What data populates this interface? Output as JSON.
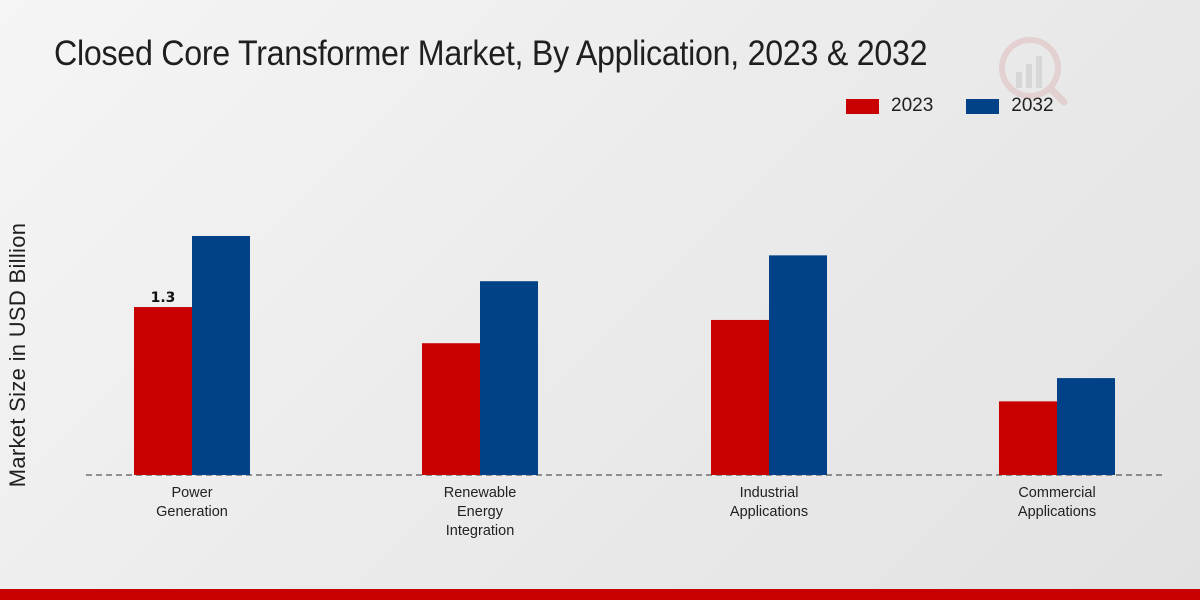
{
  "chart_data": {
    "type": "bar",
    "title": "Closed Core Transformer Market, By Application, 2023 & 2032",
    "xlabel": "",
    "ylabel": "Market Size in USD Billion",
    "categories": [
      "Power Generation",
      "Renewable Energy Integration",
      "Industrial Applications",
      "Commercial Applications"
    ],
    "category_lines": [
      [
        "Power",
        "Generation"
      ],
      [
        "Renewable",
        "Energy",
        "Integration"
      ],
      [
        "Industrial",
        "Applications"
      ],
      [
        "Commercial",
        "Applications"
      ]
    ],
    "series": [
      {
        "name": "2023",
        "color": "#c80000",
        "values": [
          1.3,
          1.02,
          1.2,
          0.57
        ]
      },
      {
        "name": "2032",
        "color": "#004187",
        "values": [
          1.85,
          1.5,
          1.7,
          0.75
        ]
      }
    ],
    "data_labels": [
      {
        "series": 0,
        "index": 0,
        "text": "1.3"
      }
    ],
    "ylim": [
      0,
      2.5
    ],
    "grid": false,
    "legend_position": "top-right"
  },
  "colors": {
    "accent_red": "#c80000",
    "accent_blue": "#004187"
  }
}
